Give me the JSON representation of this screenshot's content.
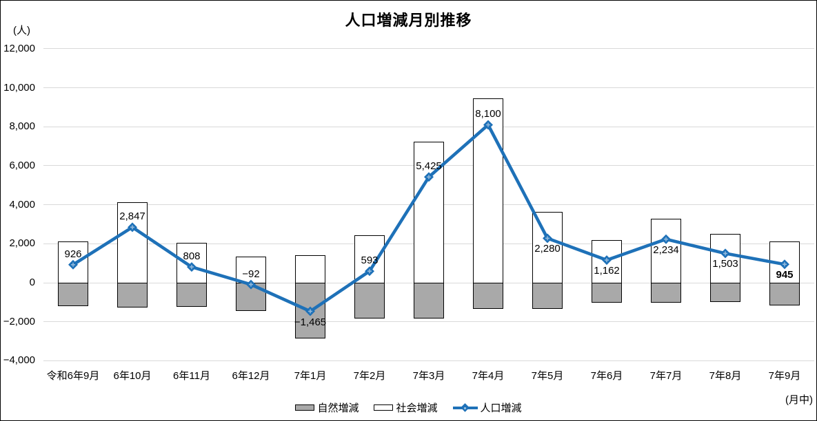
{
  "title": "人口増減月別推移",
  "y_axis": {
    "unit_label": "(人)",
    "tick_labels": [
      "12,000",
      "10,000",
      "8,000",
      "6,000",
      "4,000",
      "2,000",
      "0",
      "−2,000",
      "−4,000"
    ]
  },
  "x_axis": {
    "period_note": "(月中)"
  },
  "legend": {
    "natural_label": "自然増減",
    "social_label": "社会増減",
    "population_label": "人口増減"
  },
  "colors": {
    "line": "#1E71B8",
    "marker_cross": "#92B9DC",
    "bar_natural_fill": "#A9A9A9",
    "bar_social_fill": "#FFFFFF",
    "bar_border": "#000000",
    "gridline": "#D9D9D9",
    "text": "#000000",
    "background": "#FFFFFF"
  },
  "chart_data": {
    "type": "combo (stacked bar + line)",
    "title": "人口増減月別推移",
    "ylabel": "(人)",
    "xnote": "(月中)",
    "ylim": [
      -4000,
      12000
    ],
    "y_tick_step": 2000,
    "grid": true,
    "legend_position": "bottom",
    "categories": [
      "令和6年9月",
      "6年10月",
      "6年11月",
      "6年12月",
      "7年1月",
      "7年2月",
      "7年3月",
      "7年4月",
      "7年5月",
      "7年6月",
      "7年7月",
      "7年8月",
      "7年9月"
    ],
    "y_ticks": [
      {
        "value": 12000,
        "label": "12,000"
      },
      {
        "value": 10000,
        "label": "10,000"
      },
      {
        "value": 8000,
        "label": "8,000"
      },
      {
        "value": 6000,
        "label": "6,000"
      },
      {
        "value": 4000,
        "label": "4,000"
      },
      {
        "value": 2000,
        "label": "2,000"
      },
      {
        "value": 0,
        "label": "0"
      },
      {
        "value": -2000,
        "label": "−2,000"
      },
      {
        "value": -4000,
        "label": "−4,000"
      }
    ],
    "series": [
      {
        "name": "自然増減",
        "type": "bar",
        "stack_role": "negative",
        "values": [
          -1184,
          -1283,
          -1242,
          -1442,
          -2865,
          -1837,
          -1825,
          -1350,
          -1340,
          -1028,
          -1036,
          -997,
          -1175
        ]
      },
      {
        "name": "社会増減",
        "type": "bar",
        "stack_role": "positive",
        "values": [
          2110,
          4130,
          2050,
          1350,
          1400,
          2430,
          7250,
          9450,
          3620,
          2190,
          3270,
          2500,
          2120
        ]
      },
      {
        "name": "人口増減",
        "type": "line",
        "values": [
          926,
          2847,
          808,
          -92,
          -1465,
          593,
          5425,
          8100,
          2280,
          1162,
          2234,
          1503,
          945
        ],
        "data_labels": [
          "926",
          "2,847",
          "808",
          "−92",
          "−1,465",
          "593",
          "5,425",
          "8,100",
          "2,280",
          "1,162",
          "2,234",
          "1,503",
          "945"
        ],
        "label_positions": [
          "above",
          "above",
          "above",
          "above",
          "below",
          "above",
          "above",
          "above",
          "below",
          "below",
          "below",
          "below",
          "below"
        ],
        "emphasized_label_index": 12
      }
    ]
  }
}
